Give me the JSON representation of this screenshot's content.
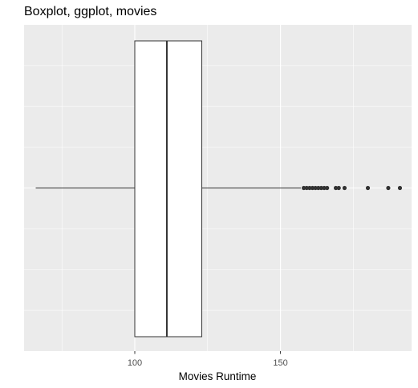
{
  "chart_data": {
    "type": "boxplot",
    "title": "Boxplot, ggplot, movies",
    "xlabel": "Movies Runtime",
    "ylabel": "",
    "xlim": [
      62,
      195
    ],
    "x_ticks": [
      100,
      150
    ],
    "x_minor_ticks": [
      75,
      125,
      175
    ],
    "grid": true,
    "colors": {
      "panel": "#ebebeb",
      "grid": "#ffffff",
      "box_fill": "#ffffff",
      "box_line": "#333333",
      "outlier": "#333333",
      "tick_text": "#4d4d4d"
    },
    "box": {
      "lower_whisker": 66,
      "q1": 100,
      "median": 111,
      "q3": 123,
      "upper_whisker": 157
    },
    "outliers": [
      158,
      159,
      160,
      161,
      162,
      163,
      164,
      165,
      166,
      169,
      170,
      172,
      180,
      187,
      191
    ]
  }
}
